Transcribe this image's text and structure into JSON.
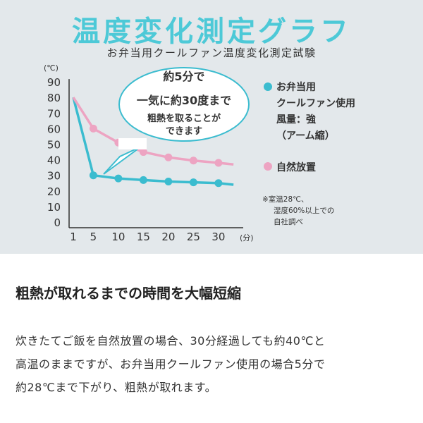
{
  "chart_data": {
    "type": "line",
    "title": "温度変化測定グラフ",
    "subtitle": "お弁当用クールファン温度変化測定試験",
    "y_unit": "(℃)",
    "x_unit": "(分)",
    "ylim": [
      0,
      90
    ],
    "yticks": [
      0,
      10,
      20,
      30,
      40,
      50,
      60,
      70,
      80,
      90
    ],
    "xticks": [
      1,
      5,
      10,
      15,
      20,
      25,
      30
    ],
    "series": [
      {
        "name_lines": [
          "お弁当用",
          "クールファン使用",
          "風量：強",
          "（アーム縮）"
        ],
        "color": "#3bbccf",
        "points": [
          [
            1,
            80
          ],
          [
            5,
            30
          ],
          [
            10,
            28
          ],
          [
            15,
            27
          ],
          [
            20,
            26
          ],
          [
            25,
            25.5
          ],
          [
            30,
            25
          ],
          [
            33,
            24
          ]
        ]
      },
      {
        "name_lines": [
          "自然放置"
        ],
        "color": "#eda4c2",
        "points": [
          [
            1,
            80
          ],
          [
            5,
            60
          ],
          [
            10,
            51
          ],
          [
            15,
            45
          ],
          [
            20,
            41.5
          ],
          [
            25,
            39.5
          ],
          [
            30,
            38
          ],
          [
            33,
            37
          ]
        ]
      }
    ],
    "callout_lines": [
      "約5分で",
      "一気に約30度まで",
      "粗熱を取ることが",
      "できます"
    ],
    "note_lines": [
      "※室温28℃、",
      "湿度60%以上での",
      "自社調べ"
    ]
  },
  "article": {
    "headline": "粗熱が取れるまでの時間を大幅短縮",
    "body_lines": [
      "炊きたてご飯を自然放置の場合、30分経過しても約40℃と",
      "高温のままですが、お弁当用クールファン使用の場合5分で",
      "約28℃まで下がり、粗熱が取れます。"
    ]
  }
}
